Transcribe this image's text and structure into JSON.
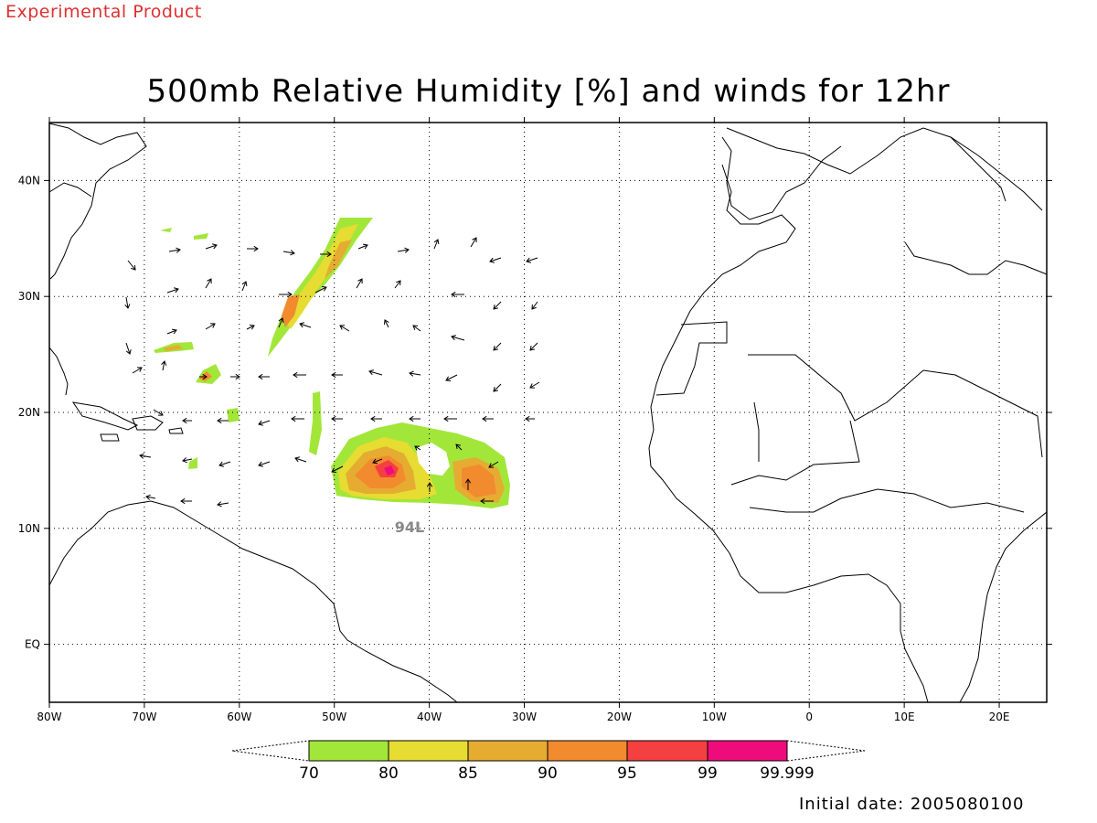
{
  "stamp": "Experimental Product",
  "title": "500mb Relative Humidity [%] and winds for 12hr",
  "initial_date": "Initial date: 2005080100",
  "storm_label": "94L",
  "map": {
    "lon_range": [
      -80,
      25
    ],
    "lat_range": [
      -5,
      45
    ],
    "lon_ticks": [
      "80W",
      "70W",
      "60W",
      "50W",
      "40W",
      "30W",
      "20W",
      "10W",
      "0",
      "10E",
      "20E"
    ],
    "lat_ticks": [
      "40N",
      "30N",
      "20N",
      "10N",
      "EQ"
    ],
    "grid": "dotted"
  },
  "colorbar": {
    "labels": [
      "70",
      "80",
      "85",
      "90",
      "95",
      "99",
      "99.999"
    ],
    "colors": [
      "#a3e63a",
      "#e6dc32",
      "#e6ac32",
      "#f28a2e",
      "#f44040",
      "#ee0c7c"
    ]
  }
}
